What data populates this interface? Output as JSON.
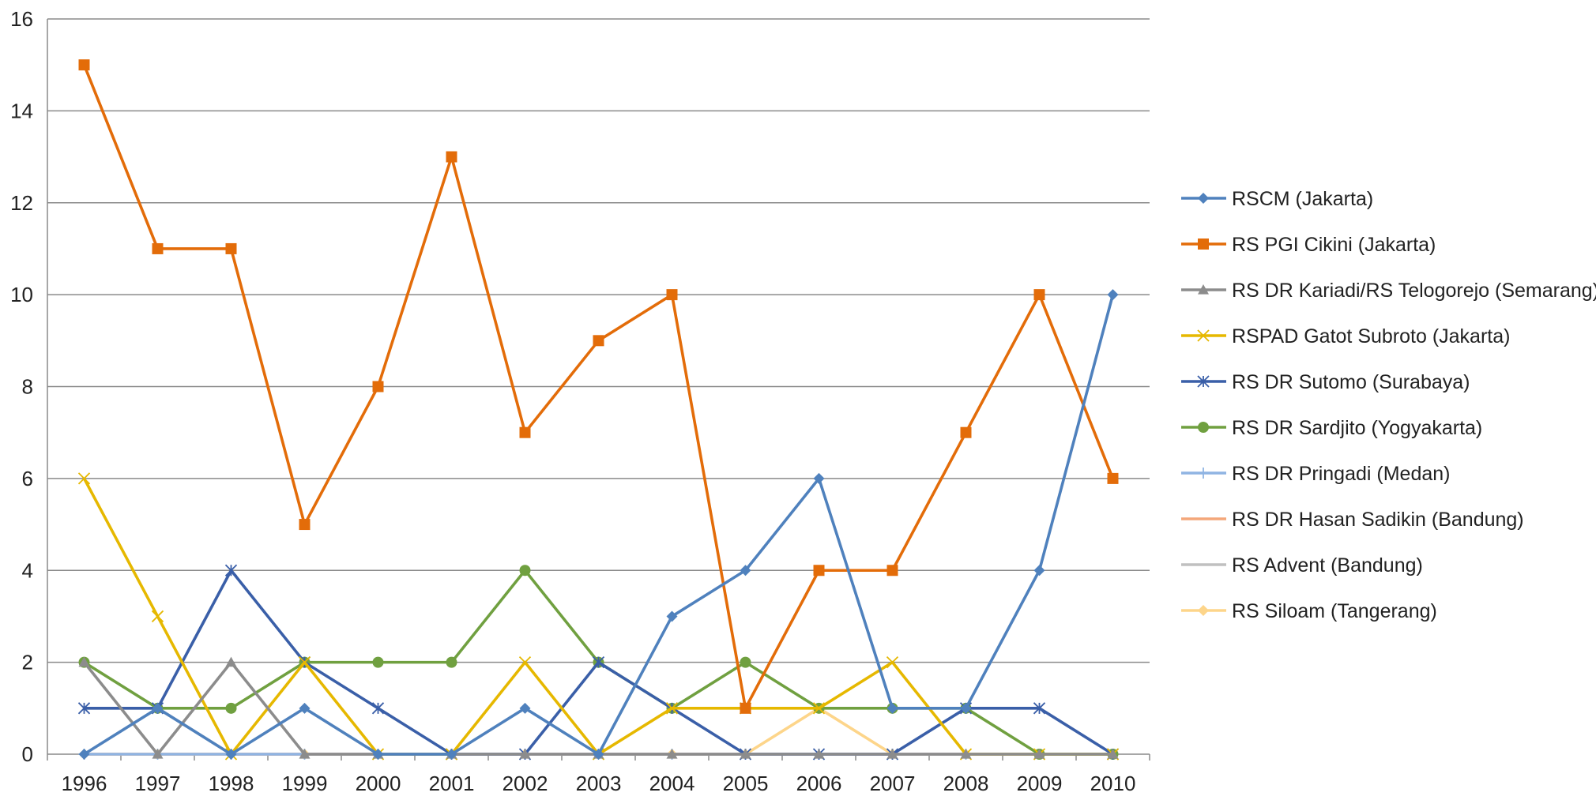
{
  "chart_data": {
    "type": "line",
    "x": [
      "1996",
      "1997",
      "1998",
      "1999",
      "2000",
      "2001",
      "2002",
      "2003",
      "2004",
      "2005",
      "2006",
      "2007",
      "2008",
      "2009",
      "2010"
    ],
    "ylim": [
      0,
      16
    ],
    "yticks": [
      0,
      2,
      4,
      6,
      8,
      10,
      12,
      14,
      16
    ],
    "grid": "horizontal",
    "legend_position": "right",
    "series": [
      {
        "name": "RSCM (Jakarta)",
        "color": "#4f81bd",
        "marker": "diamond",
        "values": [
          0,
          1,
          0,
          1,
          0,
          0,
          1,
          0,
          3,
          4,
          6,
          1,
          1,
          4,
          10
        ]
      },
      {
        "name": "RS PGI Cikini (Jakarta)",
        "color": "#e36c09",
        "marker": "square",
        "values": [
          15,
          11,
          11,
          5,
          8,
          13,
          7,
          9,
          10,
          1,
          4,
          4,
          7,
          10,
          6
        ]
      },
      {
        "name": "RS DR Kariadi/RS Telogorejo (Semarang)",
        "color": "#8c8c8c",
        "marker": "triangle",
        "values": [
          2,
          0,
          2,
          0,
          0,
          0,
          0,
          0,
          0,
          0,
          0,
          0,
          0,
          0,
          0
        ]
      },
      {
        "name": "RSPAD Gatot Subroto (Jakarta)",
        "color": "#e6b800",
        "marker": "x",
        "values": [
          6,
          3,
          0,
          2,
          0,
          0,
          2,
          0,
          1,
          1,
          1,
          2,
          0,
          0,
          0
        ]
      },
      {
        "name": "RS DR Sutomo (Surabaya)",
        "color": "#3a5fa8",
        "marker": "star",
        "values": [
          1,
          1,
          4,
          2,
          1,
          0,
          0,
          2,
          1,
          0,
          0,
          0,
          1,
          1,
          0
        ]
      },
      {
        "name": "RS DR Sardjito (Yogyakarta)",
        "color": "#70a040",
        "marker": "circle",
        "values": [
          2,
          1,
          1,
          2,
          2,
          2,
          4,
          2,
          1,
          2,
          1,
          1,
          1,
          0,
          0
        ]
      },
      {
        "name": "RS DR Pringadi (Medan)",
        "color": "#8fb4e3",
        "marker": "plus",
        "values": [
          0,
          0,
          0,
          0,
          0,
          0,
          0,
          0,
          0,
          0,
          0,
          0,
          0,
          0,
          0
        ]
      },
      {
        "name": "RS DR Hasan Sadikin (Bandung)",
        "color": "#f4a77a",
        "marker": "none",
        "values": [
          0,
          0,
          0,
          0,
          0,
          0,
          0,
          0,
          0,
          0,
          0,
          0,
          0,
          0,
          0
        ]
      },
      {
        "name": "RS Advent (Bandung)",
        "color": "#c0c0c0",
        "marker": "none",
        "values": [
          1,
          1,
          0,
          0,
          0,
          0,
          0,
          0,
          0,
          0,
          0,
          0,
          0,
          0,
          0
        ]
      },
      {
        "name": "RS Siloam (Tangerang)",
        "color": "#fdd58a",
        "marker": "diamond",
        "values": [
          0,
          0,
          0,
          0,
          0,
          0,
          0,
          0,
          0,
          0,
          1,
          0,
          0,
          0,
          0
        ]
      }
    ]
  }
}
